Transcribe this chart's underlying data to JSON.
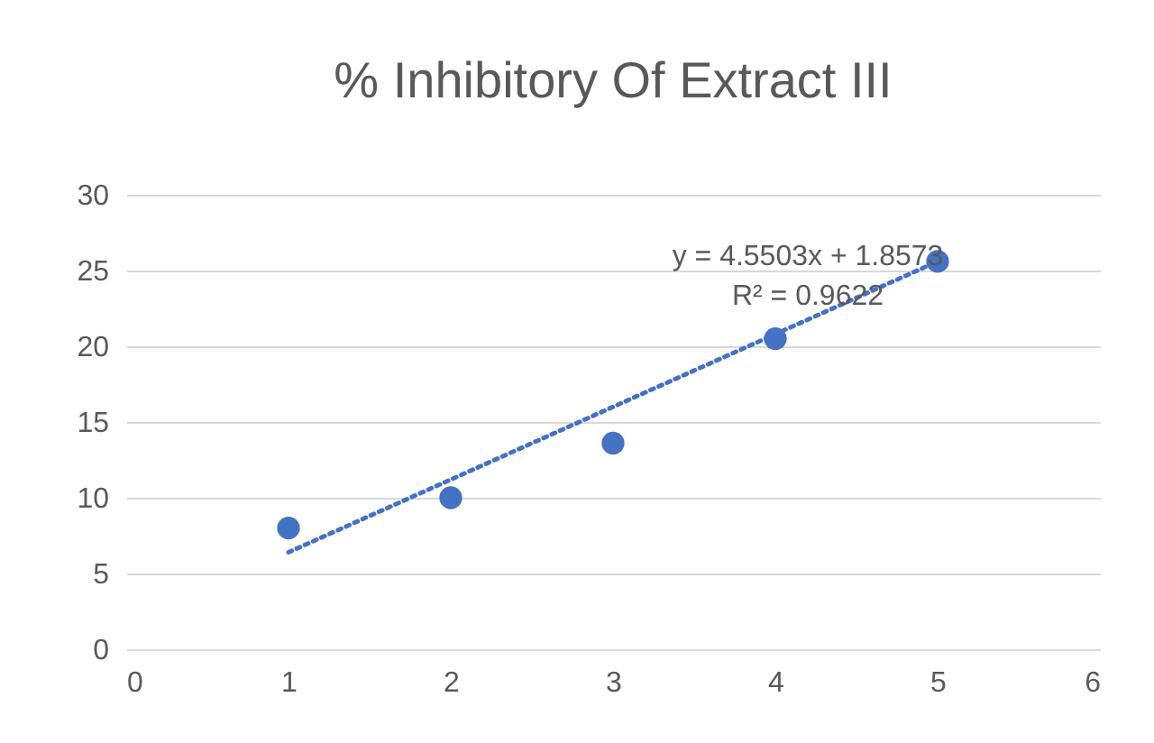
{
  "chart_data": {
    "type": "scatter",
    "title": "% Inhibitory Of Extract III",
    "x": [
      1,
      2,
      3,
      4,
      5
    ],
    "series": [
      {
        "type": "scatter",
        "color": "#4472c4",
        "marker": "circle",
        "values": [
          8,
          10,
          13.6,
          20.5,
          25.6
        ]
      },
      {
        "type": "line",
        "color": "#4472c4",
        "line_style": "dotted",
        "marker": "none",
        "x": [
          1,
          5
        ],
        "values": [
          6.4,
          25.6
        ]
      }
    ],
    "xlim": [
      0,
      6
    ],
    "xticks": [
      0,
      1,
      2,
      3,
      4,
      5,
      6
    ],
    "ylim": [
      0,
      30
    ],
    "yticks": [
      0,
      5,
      10,
      15,
      20,
      25,
      30
    ],
    "grid": "y",
    "annotations": [
      "y = 4.5503x + 1.8573",
      "R² = 0.9622"
    ]
  }
}
